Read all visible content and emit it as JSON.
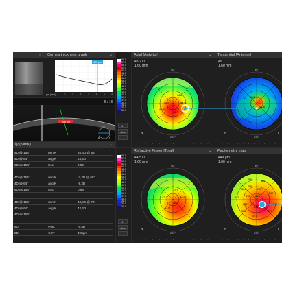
{
  "app": {
    "accent": "#2aa8e0"
  },
  "top_left_panel": {
    "chevron": "⌄"
  },
  "cornea_graph": {
    "title": "Cornea thickness graph",
    "marker_label": "460 µm",
    "xaxis_label": "µm (mm)",
    "x_ticks": [
      "-1",
      "0",
      "1",
      "2",
      "3",
      "4",
      "5",
      "6"
    ],
    "y_ticks": [
      "",
      "",
      "",
      "",
      "",
      "",
      ""
    ]
  },
  "bscan": {
    "counter": "5 / 16",
    "thickness_label": "456 µm",
    "angle_label": "31°",
    "n_label": "N",
    "t_label": "T"
  },
  "summary": {
    "title": "ry (SimK)",
    "rows": [
      {
        "a": "4D @ 154°",
        "b": "min K",
        "c": "46,4D @ 65°"
      },
      {
        "a": "4D @ 64°",
        "b": "avg K",
        "c": "43,5D"
      },
      {
        "a": "6D ax 154°",
        "b": "Ecc",
        "c": "0,96"
      },
      {
        "a": "",
        "b": "",
        "c": ""
      },
      {
        "a": "4D @ 154°",
        "b": "min K",
        "c": "-7,2D @ 65°"
      },
      {
        "a": "4D @ 64°",
        "b": "avg K",
        "c": "-6,2D"
      },
      {
        "a": "6D ax 154°",
        "b": "Ecc",
        "c": "0,98"
      },
      {
        "a": "",
        "b": "",
        "c": ""
      },
      {
        "a": "4D @ 154°",
        "b": "min K",
        "c": "44,9D @ 76°"
      },
      {
        "a": "4D @ 64°",
        "b": "avg K",
        "c": "42,6D"
      },
      {
        "a": "4D ax 154°",
        "b": "",
        "c": ""
      },
      {
        "a": "",
        "b": "",
        "c": ""
      },
      {
        "a": "8D",
        "b": "Post",
        "c": "-6,5D"
      },
      {
        "a": "8D",
        "b": "CCT",
        "c": "498µm"
      }
    ]
  },
  "scale_top": {
    "labels": [
      "60.0",
      "57.5",
      "55.0",
      "52.5",
      "50.0",
      "48.5",
      "47.0",
      "46.0",
      "45.0",
      "44.0",
      "43.0",
      "42.0",
      "41.0",
      "40.0",
      "39.0",
      "37.5",
      "36.0",
      "34.5",
      "33.0",
      "30.0"
    ],
    "colors": [
      "#ffffff",
      "#ff33cc",
      "#ff0066",
      "#cc0000",
      "#ff3300",
      "#ff6600",
      "#ff9900",
      "#ffcc00",
      "#ffff00",
      "#ccff00",
      "#99ff33",
      "#33ff33",
      "#00dd66",
      "#00ccaa",
      "#00aaee",
      "#0077ff",
      "#0044ee",
      "#2222cc",
      "#222299",
      "#111166"
    ],
    "btn_d": "D",
    "btn_abs": "Abs",
    "btn_more": "..."
  },
  "scale_bottom": {
    "labels": [
      "60.0",
      "57.5",
      "55.0",
      "52.5",
      "50.0",
      "48.5",
      "47.0",
      "46.0",
      "45.0",
      "44.0",
      "43.0",
      "42.0",
      "41.0",
      "40.0",
      "39.0",
      "37.5",
      "36.0",
      "34.5",
      "33.0",
      "30.0"
    ],
    "btn_d": "D",
    "btn_abs": "Abs",
    "btn_more": "..."
  },
  "axial": {
    "title": "Axial [Anterior]",
    "value1": "48.2 D",
    "value2": "1.60 mm",
    "deg_top": "90°",
    "deg_bottom": "270°",
    "n": "N",
    "t": "T",
    "z1": "46.3",
    "z2": "45.9",
    "z3": "44.5",
    "z4": "44.2",
    "z5": "43.9"
  },
  "tangential": {
    "title": "Tangential [Anterior]",
    "value1": "49.7 D",
    "value2": "1.60 mm",
    "deg_top": "90°",
    "deg_bottom": "270°",
    "n": "N",
    "t": "T",
    "z1": "48.3",
    "z2": "43.8"
  },
  "refractive": {
    "title": "Refractive Power [Total]",
    "value1": "44.5 D",
    "value2": "1.60 mm",
    "deg_top": "90°",
    "deg_bottom": "270°",
    "n": "N",
    "t": "T",
    "z1": "43.5",
    "z2": "42.3",
    "z3": "43.3",
    "z4": "38.6",
    "z5": "41.0"
  },
  "pachymetry": {
    "title": "Pachymetry map",
    "value1": "449 µm",
    "value2": "1.60 mm",
    "deg_top": "90°",
    "deg_bottom": "270°",
    "n": "N",
    "t": "T",
    "vals": [
      "529",
      "566",
      "565",
      "584",
      "573",
      "601",
      "575",
      "555",
      "597",
      "553",
      "549",
      "604",
      "607",
      "555",
      "574"
    ]
  }
}
